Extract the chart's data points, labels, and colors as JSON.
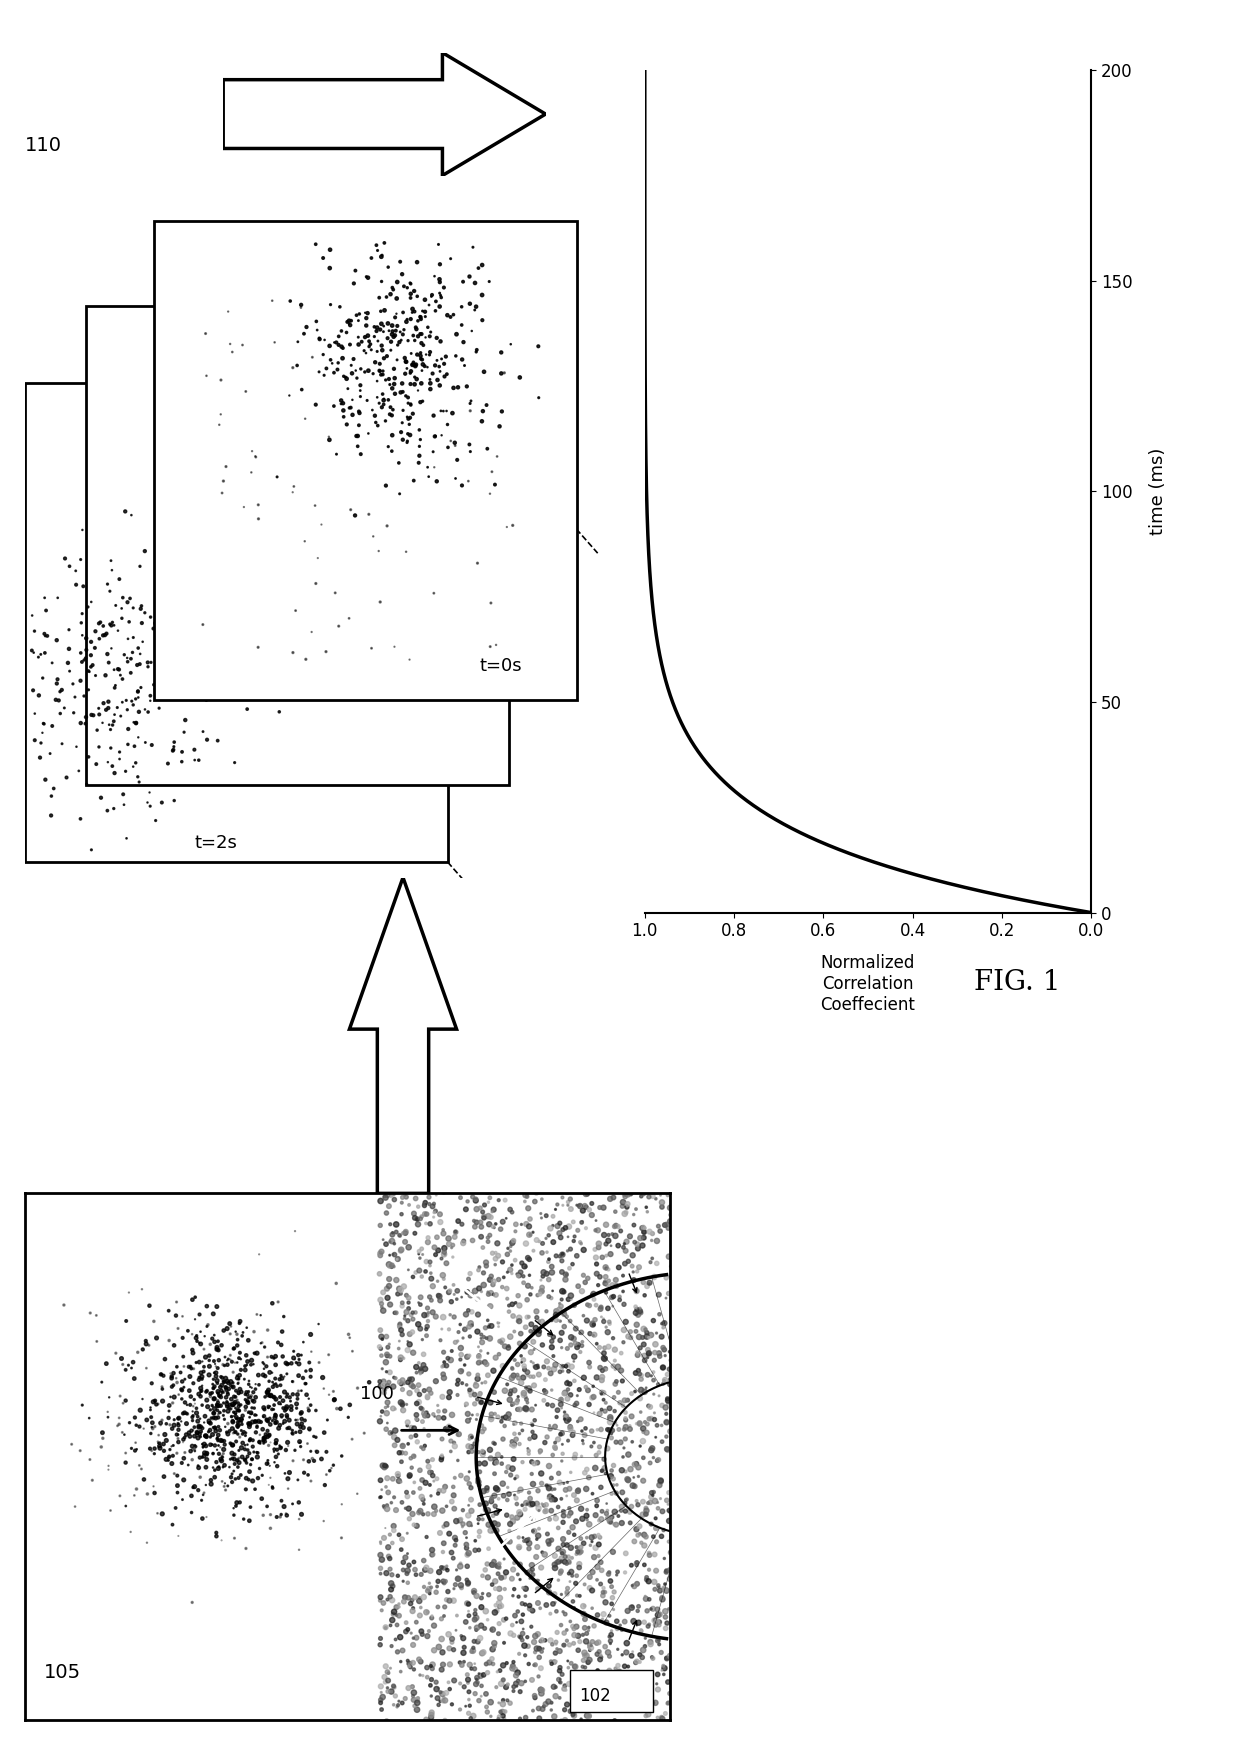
{
  "fig_label": "FIG. 1",
  "graph": {
    "time_label": "time (ms)",
    "corr_label_lines": [
      "Normalized",
      "Correlation",
      "Coeffecient"
    ],
    "time_ticks": [
      0,
      50,
      100,
      150,
      200
    ],
    "corr_ticks": [
      0,
      0.2,
      0.4,
      0.6,
      0.8,
      1
    ],
    "time_max": 200,
    "line_color": "#000000",
    "line_width": 2.5,
    "tau": 18
  },
  "label_110": "110",
  "label_105": "105",
  "label_100": "100",
  "label_102": "102",
  "label_t0": "t=0s",
  "label_t2": "t=2s",
  "bg_color": "#ffffff"
}
